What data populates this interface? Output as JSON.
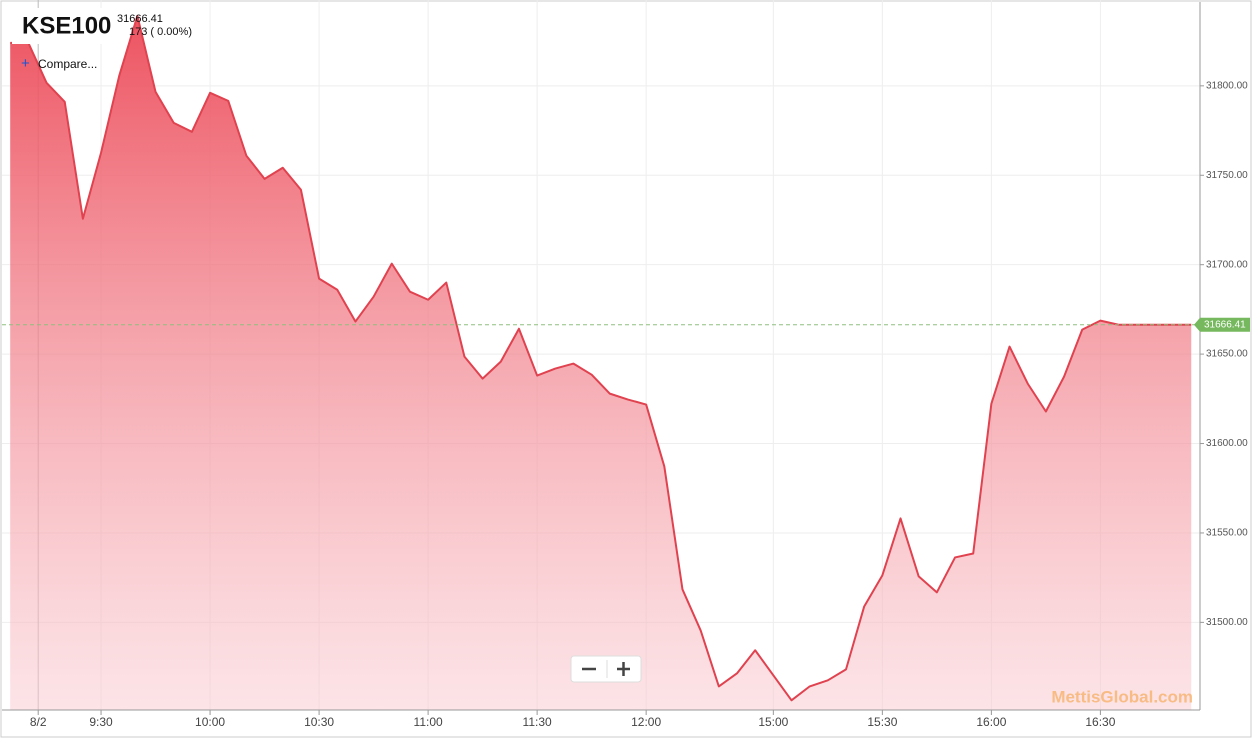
{
  "chart_data": {
    "type": "area",
    "title": "KSE100",
    "last_price": 31666.41,
    "change": "173 ( 0.00%)",
    "compare_button": "Compare...",
    "watermark": "MettisGlobal.com",
    "date_label": "8/2",
    "color": "#e0424f",
    "grid": true,
    "categories": [
      null,
      null,
      null,
      null,
      null,
      "9:30",
      null,
      null,
      null,
      null,
      null,
      "10:00",
      null,
      null,
      null,
      null,
      null,
      "10:30",
      null,
      null,
      null,
      null,
      null,
      "11:00",
      null,
      null,
      null,
      null,
      null,
      "11:30",
      null,
      null,
      null,
      null,
      null,
      "12:00",
      null,
      null,
      null,
      null,
      null,
      null,
      "15:00",
      null,
      null,
      null,
      null,
      null,
      "15:30",
      null,
      null,
      null,
      null,
      null,
      "16:00",
      null,
      null,
      null,
      null,
      null,
      "16:30",
      null,
      null,
      null,
      null,
      null
    ],
    "values": [
      31824.0,
      31824.0,
      31801.7,
      31791.1,
      31725.7,
      31762.6,
      31805.6,
      31839.1,
      31796.6,
      31779.3,
      31774.3,
      31796.1,
      31791.6,
      31760.9,
      31748.0,
      31754.2,
      31741.9,
      31692.2,
      31686.0,
      31668.2,
      31682.1,
      31700.6,
      31684.9,
      31680.4,
      31690.0,
      31648.6,
      31636.3,
      31645.8,
      31664.2,
      31638.0,
      31641.9,
      31644.7,
      31638.5,
      31627.9,
      31624.6,
      31621.8,
      31587.2,
      31518.4,
      31495.5,
      31464.2,
      31471.5,
      31484.4,
      31470.4,
      31456.4,
      31464.2,
      31467.6,
      31473.7,
      31508.9,
      31526.3,
      31558.1,
      31525.7,
      31516.8,
      31536.3,
      31538.5,
      31622.3,
      31654.2,
      31633.5,
      31617.9,
      31637.4,
      31663.7,
      31668.7,
      31666.41,
      31666.41,
      31666.41,
      31666.41,
      31666.41
    ],
    "ylim": [
      31451,
      31848
    ],
    "yticks": [
      {
        "value": 31500,
        "label": "31500.00"
      },
      {
        "value": 31550,
        "label": "31550.00"
      },
      {
        "value": 31600,
        "label": "31600.00"
      },
      {
        "value": 31650,
        "label": "31650.00"
      },
      {
        "value": 31700,
        "label": "31700.00"
      },
      {
        "value": 31750,
        "label": "31750.00"
      },
      {
        "value": 31800,
        "label": "31800.00"
      }
    ]
  }
}
